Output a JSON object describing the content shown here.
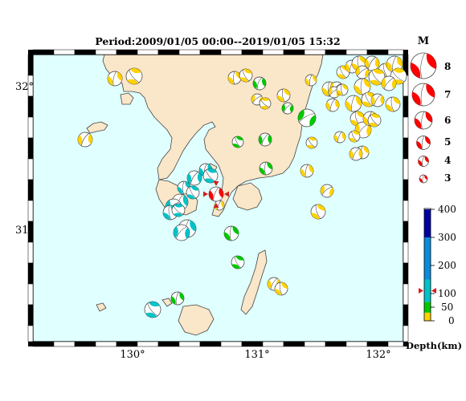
{
  "title": "Period:2009/01/05 00:00--2019/01/05 15:32",
  "map": {
    "lat_labels": [
      "32°",
      "31°"
    ],
    "lon_labels": [
      "130°",
      "131°",
      "132°"
    ]
  },
  "magnitude_legend": {
    "heading": "M",
    "magnitudes": [
      "8",
      "7",
      "6",
      "5",
      "4",
      "3"
    ],
    "color": "#ff0000"
  },
  "depth_legend": {
    "title": "Depth(km)",
    "tick_labels": [
      "400",
      "300",
      "200",
      "100",
      "50",
      "0"
    ],
    "bands": [
      {
        "from": 0,
        "to": 30,
        "color": "#ffd200"
      },
      {
        "from": 30,
        "to": 70,
        "color": "#00c800"
      },
      {
        "from": 70,
        "to": 150,
        "color": "#00c3c8"
      },
      {
        "from": 150,
        "to": 300,
        "color": "#0a8cdc"
      },
      {
        "from": 300,
        "to": 400,
        "color": "#0000a0"
      }
    ],
    "marker_color": "#d21e1e"
  },
  "colors": {
    "sea": "#e0ffff",
    "land": "#fae6c8",
    "shallow": "#ffd200",
    "mid": "#00c800",
    "deep": "#00c3c8",
    "highlight": "#ff0000"
  }
}
